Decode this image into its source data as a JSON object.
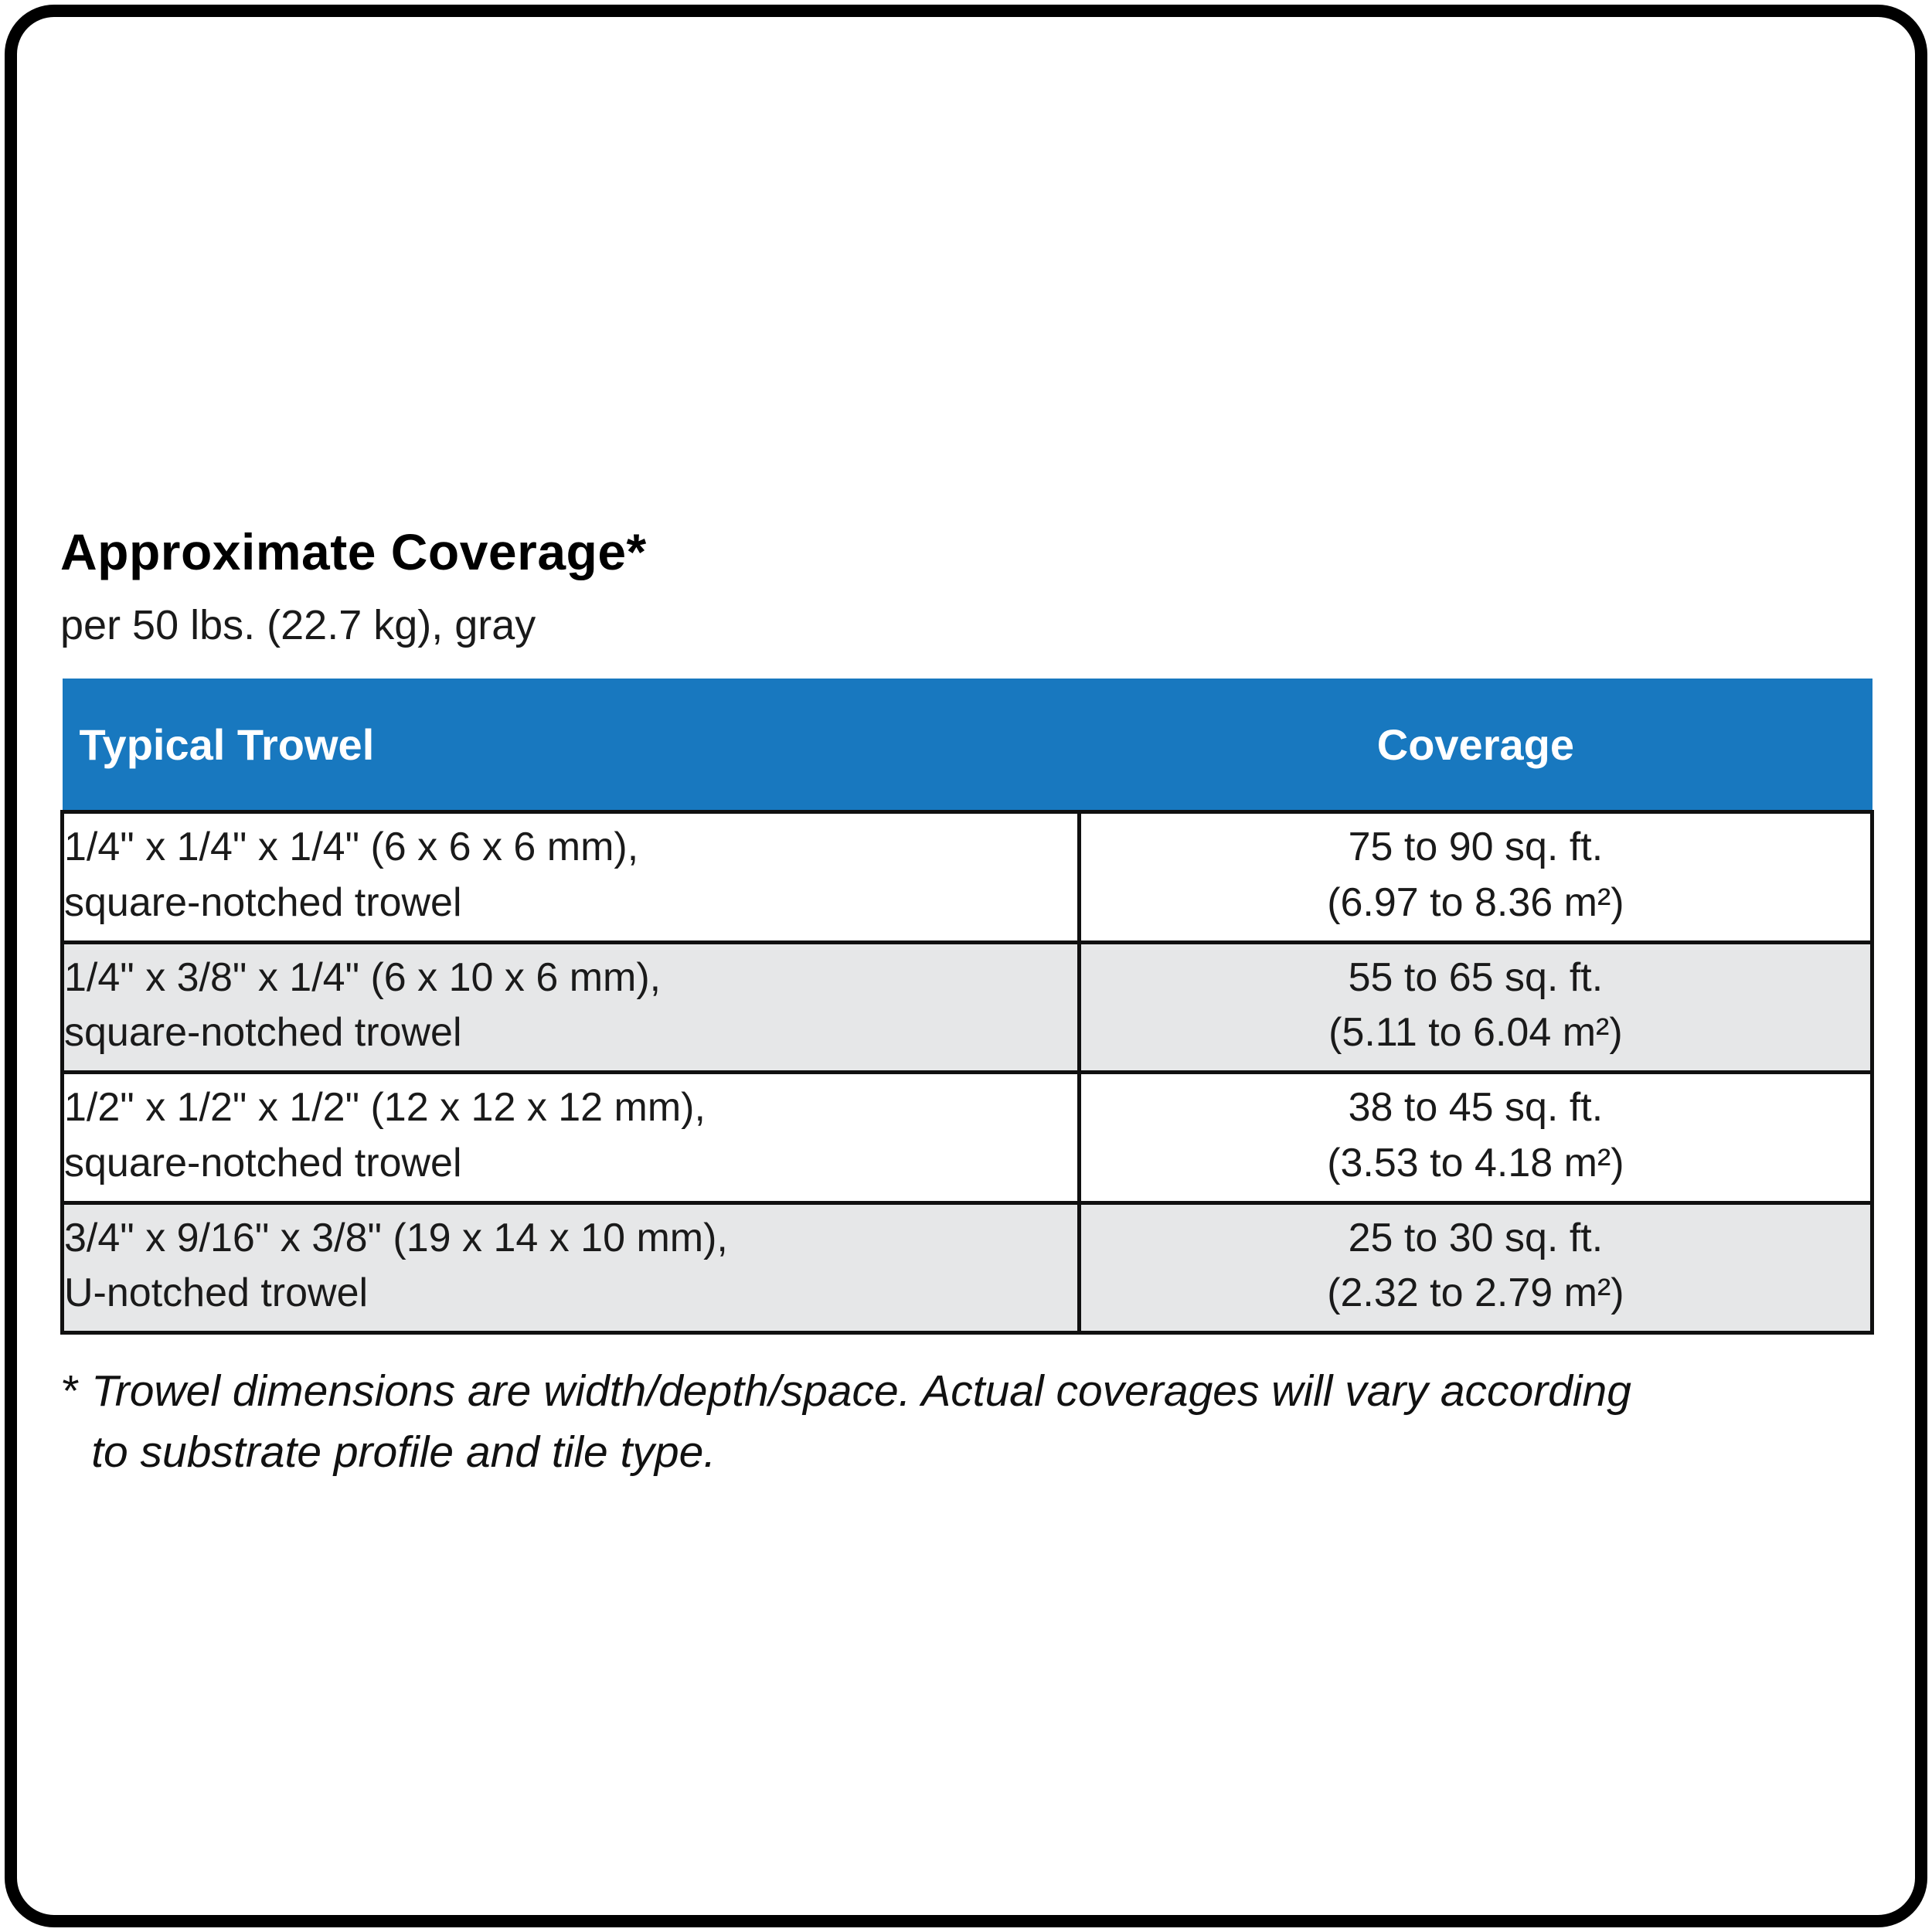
{
  "header": {
    "title": "Approximate Coverage*",
    "subtitle": "per 50 lbs. (22.7 kg), gray"
  },
  "table": {
    "columns": [
      {
        "label": "Typical Trowel"
      },
      {
        "label": "Coverage"
      }
    ],
    "rows": [
      {
        "trowel": [
          "1/4\" x 1/4\" x 1/4\" (6 x 6 x 6 mm),",
          "square-notched trowel"
        ],
        "coverage": [
          "75 to 90 sq. ft.",
          "(6.97 to 8.36 m²)"
        ]
      },
      {
        "trowel": [
          "1/4\" x 3/8\" x 1/4\" (6 x 10 x 6 mm),",
          "square-notched trowel"
        ],
        "coverage": [
          "55 to 65 sq. ft.",
          "(5.11 to 6.04 m²)"
        ]
      },
      {
        "trowel": [
          "1/2\" x 1/2\" x 1/2\" (12 x 12 x 12 mm),",
          "square-notched trowel"
        ],
        "coverage": [
          "38 to 45 sq. ft.",
          "(3.53 to 4.18 m²)"
        ]
      },
      {
        "trowel": [
          "3/4\" x 9/16\" x 3/8\" (19 x 14 x 10 mm),",
          "U-notched trowel"
        ],
        "coverage": [
          "25 to 30 sq. ft.",
          "(2.32 to 2.79 m²)"
        ]
      }
    ]
  },
  "footnote": {
    "marker": "*",
    "line1": "Trowel dimensions are width/depth/space. Actual coverages will vary according",
    "line2": "to substrate profile and tile type."
  },
  "colors": {
    "header_bg": "#1878bf",
    "header_text": "#ffffff",
    "row_alt_bg": "#e6e7e8",
    "border": "#000000"
  }
}
